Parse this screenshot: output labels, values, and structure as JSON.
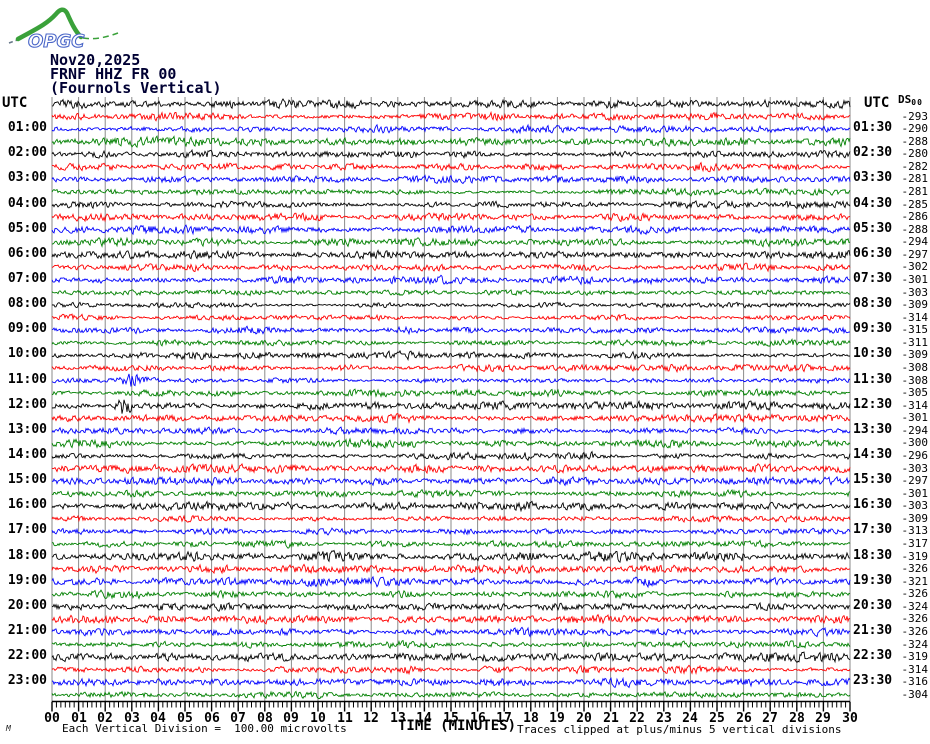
{
  "logo": {
    "text": "OPGC"
  },
  "header": {
    "date": "Nov20,2025",
    "station": "FRNF HHZ FR 00",
    "comment": "(Fournols Vertical)"
  },
  "axis": {
    "left_header": "UTC",
    "right_header": "UTC",
    "dc_header": "DS",
    "dc_header_sub": "00",
    "xlabel": "TIME (MINUTES)",
    "minutes": [
      "00",
      "01",
      "02",
      "03",
      "04",
      "05",
      "06",
      "07",
      "08",
      "09",
      "10",
      "11",
      "12",
      "13",
      "14",
      "15",
      "16",
      "17",
      "18",
      "19",
      "20",
      "21",
      "22",
      "23",
      "24",
      "25",
      "26",
      "27",
      "28",
      "29",
      "30"
    ]
  },
  "footer": {
    "left": "Each Vertical Division =  100.00 microvolts",
    "right": "Traces clipped at plus/minus 5 vertical divisions",
    "corner_mark": "M"
  },
  "colors": {
    "trace_cycle": [
      "#000000",
      "#ff0000",
      "#0000ff",
      "#008000"
    ],
    "grid": "#8a8a8a",
    "axis": "#000000",
    "title_text": "#000033",
    "logo_green": "#3aa13a",
    "logo_blue": "#4a66c8"
  },
  "chart_data": {
    "type": "line",
    "title": "FRNF HHZ FR 00 (Fournols Vertical) helicorder, Nov20,2025",
    "xlabel": "TIME (MINUTES)",
    "x_range_minutes": [
      0,
      30
    ],
    "minutes_per_line": 30,
    "lines": 48,
    "vertical_division_microvolts": 100.0,
    "clip_divisions": 5,
    "rows": [
      {
        "left": "",
        "right": "",
        "dc": "",
        "c": 0
      },
      {
        "left": "",
        "right": "",
        "dc": "-293",
        "c": 1
      },
      {
        "left": "01:00",
        "right": "01:30",
        "dc": "-290",
        "c": 2
      },
      {
        "left": "",
        "right": "",
        "dc": "-288",
        "c": 3
      },
      {
        "left": "02:00",
        "right": "02:30",
        "dc": "-280",
        "c": 0
      },
      {
        "left": "",
        "right": "",
        "dc": "-282",
        "c": 1
      },
      {
        "left": "03:00",
        "right": "03:30",
        "dc": "-281",
        "c": 2
      },
      {
        "left": "",
        "right": "",
        "dc": "-281",
        "c": 3
      },
      {
        "left": "04:00",
        "right": "04:30",
        "dc": "-285",
        "c": 0
      },
      {
        "left": "",
        "right": "",
        "dc": "-286",
        "c": 1
      },
      {
        "left": "05:00",
        "right": "05:30",
        "dc": "-288",
        "c": 2
      },
      {
        "left": "",
        "right": "",
        "dc": "-294",
        "c": 3
      },
      {
        "left": "06:00",
        "right": "06:30",
        "dc": "-297",
        "c": 0
      },
      {
        "left": "",
        "right": "",
        "dc": "-302",
        "c": 1
      },
      {
        "left": "07:00",
        "right": "07:30",
        "dc": "-301",
        "c": 2
      },
      {
        "left": "",
        "right": "",
        "dc": "-303",
        "c": 3
      },
      {
        "left": "08:00",
        "right": "08:30",
        "dc": "-309",
        "c": 0
      },
      {
        "left": "",
        "right": "",
        "dc": "-314",
        "c": 1
      },
      {
        "left": "09:00",
        "right": "09:30",
        "dc": "-315",
        "c": 2
      },
      {
        "left": "",
        "right": "",
        "dc": "-311",
        "c": 3
      },
      {
        "left": "10:00",
        "right": "10:30",
        "dc": "-309",
        "c": 0
      },
      {
        "left": "",
        "right": "",
        "dc": "-308",
        "c": 1
      },
      {
        "left": "11:00",
        "right": "11:30",
        "dc": "-308",
        "c": 2
      },
      {
        "left": "",
        "right": "",
        "dc": "-305",
        "c": 3
      },
      {
        "left": "12:00",
        "right": "12:30",
        "dc": "-314",
        "c": 0
      },
      {
        "left": "",
        "right": "",
        "dc": "-301",
        "c": 1
      },
      {
        "left": "13:00",
        "right": "13:30",
        "dc": "-294",
        "c": 2
      },
      {
        "left": "",
        "right": "",
        "dc": "-300",
        "c": 3
      },
      {
        "left": "14:00",
        "right": "14:30",
        "dc": "-296",
        "c": 0
      },
      {
        "left": "",
        "right": "",
        "dc": "-303",
        "c": 1
      },
      {
        "left": "15:00",
        "right": "15:30",
        "dc": "-297",
        "c": 2
      },
      {
        "left": "",
        "right": "",
        "dc": "-301",
        "c": 3
      },
      {
        "left": "16:00",
        "right": "16:30",
        "dc": "-303",
        "c": 0
      },
      {
        "left": "",
        "right": "",
        "dc": "-309",
        "c": 1
      },
      {
        "left": "17:00",
        "right": "17:30",
        "dc": "-313",
        "c": 2
      },
      {
        "left": "",
        "right": "",
        "dc": "-317",
        "c": 3
      },
      {
        "left": "18:00",
        "right": "18:30",
        "dc": "-319",
        "c": 0
      },
      {
        "left": "",
        "right": "",
        "dc": "-326",
        "c": 1
      },
      {
        "left": "19:00",
        "right": "19:30",
        "dc": "-321",
        "c": 2
      },
      {
        "left": "",
        "right": "",
        "dc": "-326",
        "c": 3
      },
      {
        "left": "20:00",
        "right": "20:30",
        "dc": "-324",
        "c": 0
      },
      {
        "left": "",
        "right": "",
        "dc": "-326",
        "c": 1
      },
      {
        "left": "21:00",
        "right": "21:30",
        "dc": "-326",
        "c": 2
      },
      {
        "left": "",
        "right": "",
        "dc": "-324",
        "c": 3
      },
      {
        "left": "22:00",
        "right": "22:30",
        "dc": "-319",
        "c": 0
      },
      {
        "left": "",
        "right": "",
        "dc": "-314",
        "c": 1
      },
      {
        "left": "23:00",
        "right": "23:30",
        "dc": "-316",
        "c": 2
      },
      {
        "left": "",
        "right": "",
        "dc": "-304",
        "c": 3
      }
    ],
    "events": [
      {
        "row": 4,
        "minute": 5.7,
        "amp": 3.5,
        "width": 10
      },
      {
        "row": 22,
        "minute": 3.1,
        "amp": 6.0,
        "width": 14
      },
      {
        "row": 24,
        "minute": 2.7,
        "amp": 12.0,
        "width": 6
      }
    ],
    "noise": {
      "seed": 20251120,
      "base_amp": 2.1
    }
  }
}
